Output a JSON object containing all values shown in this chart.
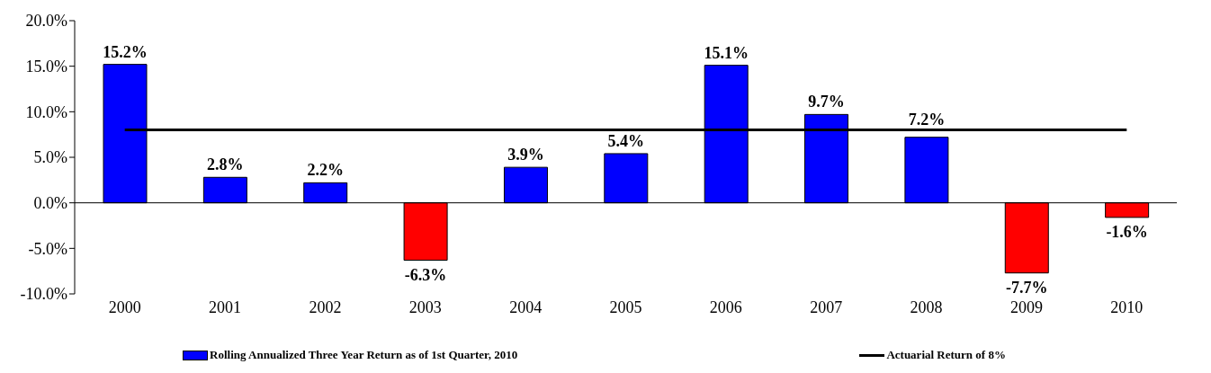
{
  "chart_data": {
    "type": "bar",
    "categories": [
      "2000",
      "2001",
      "2002",
      "2003",
      "2004",
      "2005",
      "2006",
      "2007",
      "2008",
      "2009",
      "2010"
    ],
    "series": [
      {
        "name": "Rolling Annualized Three Year Return as of 1st Quarter, 2010",
        "color": "#0000ff",
        "colors": [
          "#0000ff",
          "#0000ff",
          "#0000ff",
          "#ff0000",
          "#0000ff",
          "#0000ff",
          "#0000ff",
          "#0000ff",
          "#0000ff",
          "#ff0000",
          "#ff0000"
        ],
        "values": [
          15.2,
          2.8,
          2.2,
          -6.3,
          3.9,
          5.4,
          15.1,
          9.7,
          7.2,
          -7.7,
          -1.6
        ],
        "value_labels": [
          "15.2%",
          "2.8%",
          "2.2%",
          "-6.3%",
          "3.9%",
          "5.4%",
          "15.1%",
          "9.7%",
          "7.2%",
          "-7.7%",
          "-1.6%"
        ]
      },
      {
        "type": "line",
        "name": "Actuarial Return of 8%",
        "color": "#000000",
        "values": [
          8,
          8,
          8,
          8,
          8,
          8,
          8,
          8,
          8,
          8,
          8
        ]
      }
    ],
    "ylim": [
      -10,
      20
    ],
    "yticks": [
      {
        "value": -10,
        "label": "-10.0%"
      },
      {
        "value": -5,
        "label": "-5.0%"
      },
      {
        "value": 0,
        "label": "0.0%"
      },
      {
        "value": 5,
        "label": "5.0%"
      },
      {
        "value": 10,
        "label": "10.0%"
      },
      {
        "value": 15,
        "label": "15.0%"
      },
      {
        "value": 20,
        "label": "20.0%"
      }
    ],
    "grid": false,
    "legend": "bottom",
    "marker": "none",
    "line_style": "solid"
  }
}
